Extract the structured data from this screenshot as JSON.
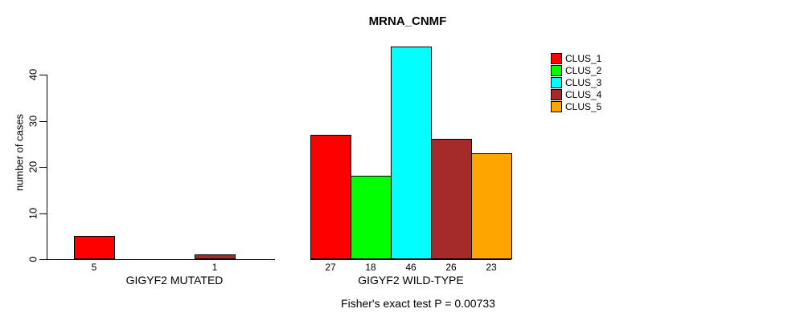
{
  "title": "MRNA_CNMF",
  "caption": "Fisher's exact test P = 0.00733",
  "y_axis": {
    "label": "number of cases",
    "ticks": [
      0,
      10,
      20,
      30,
      40
    ]
  },
  "legend": {
    "position": "right-outside"
  },
  "chart_data": {
    "type": "bar",
    "title": "MRNA_CNMF",
    "xlabel": "",
    "ylabel": "number of cases",
    "ylim": [
      0,
      46
    ],
    "yticks": [
      0,
      10,
      20,
      30,
      40
    ],
    "grid": false,
    "legend_position": "right-outside",
    "bar_value_labels": "below-axis, hidden for zero-height bars",
    "annotation": "Fisher's exact test P = 0.00733",
    "categories": [
      "GIGYF2 MUTATED",
      "GIGYF2 WILD-TYPE"
    ],
    "series": [
      {
        "name": "CLUS_1",
        "color": "#ff0000",
        "values": [
          5,
          27
        ]
      },
      {
        "name": "CLUS_2",
        "color": "#00ff00",
        "values": [
          0,
          18
        ]
      },
      {
        "name": "CLUS_3",
        "color": "#00ffff",
        "values": [
          0,
          46
        ]
      },
      {
        "name": "CLUS_4",
        "color": "#a52a2a",
        "values": [
          1,
          26
        ]
      },
      {
        "name": "CLUS_5",
        "color": "#ffa500",
        "values": [
          0,
          23
        ]
      }
    ]
  }
}
